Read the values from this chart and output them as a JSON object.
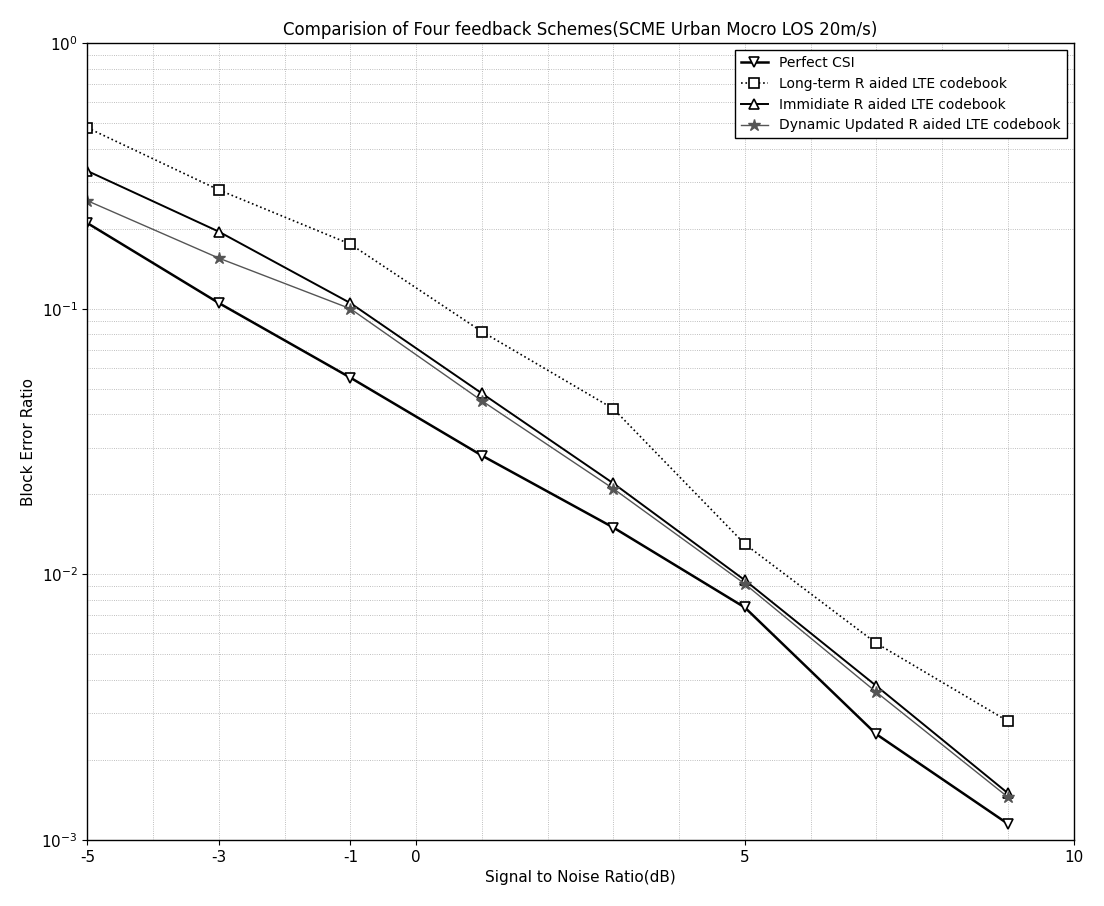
{
  "title": "Comparision of Four feedback Schemes(SCME Urban Mocro LOS 20m/s)",
  "xlabel": "Signal to Noise Ratio(dB)",
  "ylabel": "Block Error Ratio",
  "xlim": [
    -5,
    10
  ],
  "ylim": [
    0.001,
    1.0
  ],
  "series": [
    {
      "label": "Perfect CSI",
      "x": [
        -5,
        -3,
        -1,
        1,
        3,
        5,
        7,
        9
      ],
      "y": [
        0.21,
        0.105,
        0.055,
        0.028,
        0.015,
        0.0075,
        0.0025,
        0.00115
      ],
      "color": "#000000",
      "linestyle": "-",
      "marker": "v",
      "markersize": 7,
      "linewidth": 1.8,
      "markerfacecolor": "white",
      "markeredgecolor": "#000000",
      "markeredgewidth": 1.2
    },
    {
      "label": "Long-term R aided LTE codebook",
      "x": [
        -5,
        -3,
        -1,
        1,
        3,
        5,
        7,
        9
      ],
      "y": [
        0.48,
        0.28,
        0.175,
        0.082,
        0.042,
        0.013,
        0.0055,
        0.0028
      ],
      "color": "#000000",
      "linestyle": ":",
      "marker": "s",
      "markersize": 7,
      "linewidth": 1.2,
      "markerfacecolor": "white",
      "markeredgecolor": "#000000",
      "markeredgewidth": 1.2
    },
    {
      "label": "Immidiate R aided LTE codebook",
      "x": [
        -5,
        -3,
        -1,
        1,
        3,
        5,
        7,
        9
      ],
      "y": [
        0.33,
        0.195,
        0.105,
        0.048,
        0.022,
        0.0095,
        0.0038,
        0.0015
      ],
      "color": "#000000",
      "linestyle": "-",
      "marker": "^",
      "markersize": 7,
      "linewidth": 1.4,
      "markerfacecolor": "white",
      "markeredgecolor": "#000000",
      "markeredgewidth": 1.2
    },
    {
      "label": "Dynamic Updated R aided LTE codebook",
      "x": [
        -5,
        -3,
        -1,
        1,
        3,
        5,
        7,
        9
      ],
      "y": [
        0.255,
        0.155,
        0.1,
        0.045,
        0.021,
        0.0092,
        0.0036,
        0.00145
      ],
      "color": "#555555",
      "linestyle": "-",
      "marker": "*",
      "markersize": 9,
      "linewidth": 1.0,
      "markerfacecolor": "#555555",
      "markeredgecolor": "#555555",
      "markeredgewidth": 1.0
    }
  ],
  "xticks": [
    -5,
    -3,
    -1,
    0,
    5,
    10
  ],
  "xticklabels": [
    "-5",
    "-3",
    "-1",
    "0",
    "5",
    "10"
  ],
  "legend_loc": "upper right",
  "grid_color": "#aaaaaa",
  "grid_linestyle": ":",
  "grid_linewidth": 0.6,
  "background_color": "#ffffff",
  "title_fontsize": 12,
  "label_fontsize": 11,
  "tick_fontsize": 11,
  "legend_fontsize": 10
}
